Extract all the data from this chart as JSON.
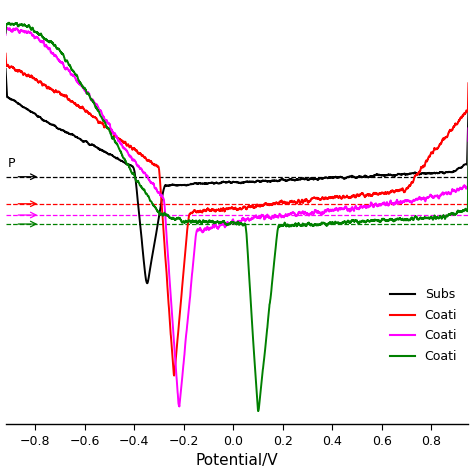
{
  "xlabel": "Potential/V",
  "xlim": [
    -0.92,
    0.95
  ],
  "ylim": [
    -8.5,
    0.8
  ],
  "x_ticks": [
    -0.8,
    -0.6,
    -0.4,
    -0.2,
    0.0,
    0.2,
    0.4,
    0.6,
    0.8
  ],
  "colors": {
    "black": "#000000",
    "red": "#ff0000",
    "magenta": "#ff00ff",
    "green": "#008000"
  },
  "passive_levels": {
    "black": -3.0,
    "red": -3.6,
    "magenta": -3.85,
    "green": -4.05
  },
  "legend_labels": [
    "Subs",
    "Coati",
    "Coati",
    "Coati"
  ]
}
